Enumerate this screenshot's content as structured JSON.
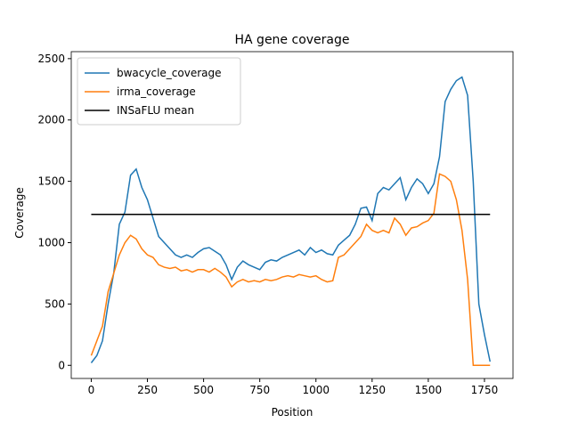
{
  "chart_data": {
    "type": "line",
    "title": "HA gene coverage",
    "x_label": "Position",
    "y_label": "Coverage",
    "x": [
      0,
      25,
      50,
      75,
      100,
      125,
      150,
      175,
      200,
      225,
      250,
      275,
      300,
      325,
      350,
      375,
      400,
      425,
      450,
      475,
      500,
      525,
      550,
      575,
      600,
      625,
      650,
      675,
      700,
      725,
      750,
      775,
      800,
      825,
      850,
      875,
      900,
      925,
      950,
      975,
      1000,
      1025,
      1050,
      1075,
      1100,
      1125,
      1150,
      1175,
      1200,
      1225,
      1250,
      1275,
      1300,
      1325,
      1350,
      1375,
      1400,
      1425,
      1450,
      1475,
      1500,
      1525,
      1550,
      1575,
      1600,
      1625,
      1650,
      1675,
      1700,
      1725,
      1750,
      1775
    ],
    "series": [
      {
        "name": "bwacycle_coverage",
        "color": "#1f77b4",
        "values": [
          20,
          80,
          200,
          500,
          750,
          1150,
          1250,
          1550,
          1600,
          1450,
          1350,
          1200,
          1050,
          1000,
          950,
          900,
          880,
          900,
          880,
          920,
          950,
          960,
          930,
          900,
          820,
          700,
          800,
          850,
          820,
          800,
          780,
          840,
          860,
          850,
          880,
          900,
          920,
          940,
          900,
          960,
          920,
          940,
          910,
          900,
          980,
          1020,
          1060,
          1150,
          1280,
          1290,
          1180,
          1400,
          1450,
          1430,
          1480,
          1530,
          1350,
          1450,
          1520,
          1480,
          1400,
          1480,
          1700,
          2150,
          2250,
          2320,
          2350,
          2200,
          1500,
          500,
          250,
          30
        ]
      },
      {
        "name": "irma_coverage",
        "color": "#ff7f0e",
        "values": [
          80,
          200,
          320,
          600,
          750,
          900,
          1000,
          1060,
          1030,
          950,
          900,
          880,
          820,
          800,
          790,
          800,
          770,
          780,
          760,
          780,
          780,
          760,
          790,
          760,
          720,
          640,
          680,
          700,
          680,
          690,
          680,
          700,
          690,
          700,
          720,
          730,
          720,
          740,
          730,
          720,
          730,
          700,
          680,
          690,
          880,
          900,
          950,
          1000,
          1050,
          1150,
          1100,
          1080,
          1100,
          1080,
          1200,
          1150,
          1060,
          1120,
          1130,
          1160,
          1180,
          1240,
          1560,
          1540,
          1500,
          1350,
          1100,
          700,
          0,
          0,
          0,
          0
        ]
      },
      {
        "name": "INSaFLU mean",
        "color": "#000000",
        "x": [
          0,
          1775
        ],
        "values": [
          1230,
          1230
        ]
      }
    ],
    "xlim": [
      -89,
      1877
    ],
    "ylim": [
      -107,
      2557
    ],
    "xticks": [
      0,
      250,
      500,
      750,
      1000,
      1250,
      1500,
      1750
    ],
    "yticks": [
      0,
      500,
      1000,
      1500,
      2000,
      2500
    ],
    "legend": "upper left"
  }
}
